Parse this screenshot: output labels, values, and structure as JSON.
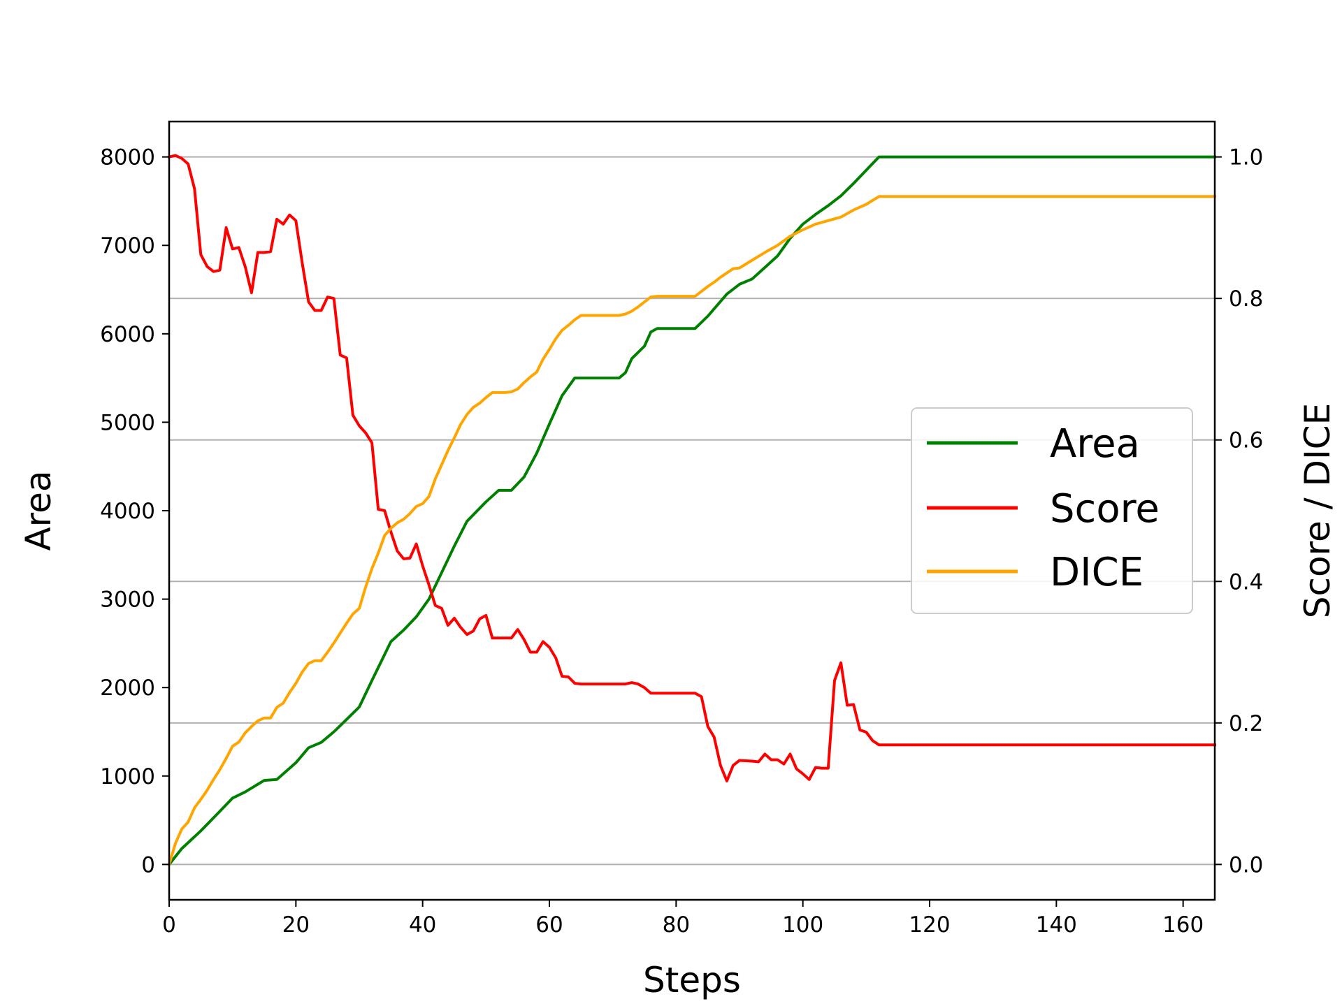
{
  "chart_data": {
    "type": "line",
    "xlabel": "Steps",
    "ylabel_left": "Area",
    "ylabel_right": "Score / DICE",
    "xlim": [
      0,
      165
    ],
    "ylim_left": [
      -400,
      8400
    ],
    "ylim_right": [
      -0.05,
      1.05
    ],
    "xticks": [
      0,
      20,
      40,
      60,
      80,
      100,
      120,
      140,
      160
    ],
    "yticks_left": [
      0,
      1000,
      2000,
      3000,
      4000,
      5000,
      6000,
      7000,
      8000
    ],
    "yticks_right": [
      "0.0",
      "0.2",
      "0.4",
      "0.6",
      "0.8",
      "1.0"
    ],
    "grid": "horizontal lines at right-axis ticks",
    "legend_position": "center-right",
    "colors": {
      "Area": "#008000",
      "Score": "#ff0000",
      "DICE": "#ffa500",
      "grid": "#b0b0b0"
    },
    "series": [
      {
        "name": "Area",
        "axis": "left",
        "points": [
          [
            0,
            0
          ],
          [
            2,
            180
          ],
          [
            5,
            380
          ],
          [
            8,
            600
          ],
          [
            10,
            750
          ],
          [
            12,
            820
          ],
          [
            15,
            950
          ],
          [
            17,
            960
          ],
          [
            20,
            1150
          ],
          [
            22,
            1320
          ],
          [
            24,
            1380
          ],
          [
            26,
            1500
          ],
          [
            28,
            1640
          ],
          [
            30,
            1780
          ],
          [
            32,
            2080
          ],
          [
            35,
            2520
          ],
          [
            37,
            2650
          ],
          [
            39,
            2800
          ],
          [
            41,
            3000
          ],
          [
            43,
            3300
          ],
          [
            45,
            3600
          ],
          [
            47,
            3880
          ],
          [
            50,
            4100
          ],
          [
            52,
            4230
          ],
          [
            54,
            4230
          ],
          [
            56,
            4380
          ],
          [
            58,
            4650
          ],
          [
            60,
            4980
          ],
          [
            62,
            5300
          ],
          [
            64,
            5500
          ],
          [
            66,
            5500
          ],
          [
            71,
            5500
          ],
          [
            72,
            5560
          ],
          [
            73,
            5720
          ],
          [
            75,
            5860
          ],
          [
            76,
            6020
          ],
          [
            77,
            6060
          ],
          [
            83,
            6060
          ],
          [
            85,
            6200
          ],
          [
            88,
            6450
          ],
          [
            90,
            6560
          ],
          [
            92,
            6620
          ],
          [
            94,
            6750
          ],
          [
            96,
            6880
          ],
          [
            98,
            7080
          ],
          [
            100,
            7240
          ],
          [
            102,
            7350
          ],
          [
            104,
            7450
          ],
          [
            106,
            7560
          ],
          [
            108,
            7700
          ],
          [
            110,
            7850
          ],
          [
            112,
            8000
          ],
          [
            165,
            8000
          ]
        ]
      },
      {
        "name": "Score",
        "axis": "right",
        "points": [
          [
            0,
            1.0
          ],
          [
            1,
            1.002
          ],
          [
            2,
            0.998
          ],
          [
            3,
            0.99
          ],
          [
            4,
            0.955
          ],
          [
            5,
            0.862
          ],
          [
            6,
            0.845
          ],
          [
            7,
            0.838
          ],
          [
            8,
            0.84
          ],
          [
            9,
            0.9
          ],
          [
            10,
            0.87
          ],
          [
            11,
            0.872
          ],
          [
            12,
            0.845
          ],
          [
            13,
            0.808
          ],
          [
            14,
            0.865
          ],
          [
            15,
            0.865
          ],
          [
            16,
            0.866
          ],
          [
            17,
            0.912
          ],
          [
            18,
            0.905
          ],
          [
            19,
            0.918
          ],
          [
            20,
            0.91
          ],
          [
            21,
            0.85
          ],
          [
            22,
            0.795
          ],
          [
            23,
            0.783
          ],
          [
            24,
            0.783
          ],
          [
            25,
            0.802
          ],
          [
            26,
            0.8
          ],
          [
            27,
            0.72
          ],
          [
            28,
            0.716
          ],
          [
            29,
            0.635
          ],
          [
            30,
            0.62
          ],
          [
            31,
            0.61
          ],
          [
            32,
            0.596
          ],
          [
            33,
            0.502
          ],
          [
            34,
            0.5
          ],
          [
            35,
            0.47
          ],
          [
            36,
            0.443
          ],
          [
            37,
            0.432
          ],
          [
            38,
            0.433
          ],
          [
            39,
            0.453
          ],
          [
            40,
            0.422
          ],
          [
            41,
            0.395
          ],
          [
            42,
            0.366
          ],
          [
            43,
            0.362
          ],
          [
            44,
            0.338
          ],
          [
            45,
            0.348
          ],
          [
            46,
            0.335
          ],
          [
            47,
            0.325
          ],
          [
            48,
            0.33
          ],
          [
            49,
            0.347
          ],
          [
            50,
            0.352
          ],
          [
            51,
            0.32
          ],
          [
            52,
            0.32
          ],
          [
            53,
            0.32
          ],
          [
            54,
            0.32
          ],
          [
            55,
            0.332
          ],
          [
            56,
            0.318
          ],
          [
            57,
            0.3
          ],
          [
            58,
            0.3
          ],
          [
            59,
            0.315
          ],
          [
            60,
            0.307
          ],
          [
            61,
            0.292
          ],
          [
            62,
            0.266
          ],
          [
            63,
            0.265
          ],
          [
            64,
            0.256
          ],
          [
            65,
            0.255
          ],
          [
            72,
            0.255
          ],
          [
            73,
            0.257
          ],
          [
            74,
            0.255
          ],
          [
            75,
            0.25
          ],
          [
            76,
            0.242
          ],
          [
            83,
            0.242
          ],
          [
            84,
            0.237
          ],
          [
            85,
            0.195
          ],
          [
            86,
            0.18
          ],
          [
            87,
            0.14
          ],
          [
            88,
            0.118
          ],
          [
            89,
            0.14
          ],
          [
            90,
            0.147
          ],
          [
            92,
            0.146
          ],
          [
            93,
            0.145
          ],
          [
            94,
            0.156
          ],
          [
            95,
            0.148
          ],
          [
            96,
            0.148
          ],
          [
            97,
            0.142
          ],
          [
            98,
            0.156
          ],
          [
            99,
            0.135
          ],
          [
            100,
            0.128
          ],
          [
            101,
            0.12
          ],
          [
            102,
            0.137
          ],
          [
            103,
            0.136
          ],
          [
            104,
            0.136
          ],
          [
            105,
            0.26
          ],
          [
            106,
            0.285
          ],
          [
            107,
            0.225
          ],
          [
            108,
            0.226
          ],
          [
            109,
            0.19
          ],
          [
            110,
            0.187
          ],
          [
            111,
            0.175
          ],
          [
            112,
            0.169
          ],
          [
            165,
            0.169
          ]
        ]
      },
      {
        "name": "DICE",
        "axis": "right",
        "points": [
          [
            0,
            0
          ],
          [
            1,
            0.03
          ],
          [
            2,
            0.05
          ],
          [
            3,
            0.06
          ],
          [
            4,
            0.08
          ],
          [
            5,
            0.092
          ],
          [
            6,
            0.105
          ],
          [
            7,
            0.12
          ],
          [
            8,
            0.134
          ],
          [
            9,
            0.15
          ],
          [
            10,
            0.167
          ],
          [
            11,
            0.173
          ],
          [
            12,
            0.186
          ],
          [
            13,
            0.195
          ],
          [
            14,
            0.203
          ],
          [
            15,
            0.207
          ],
          [
            16,
            0.207
          ],
          [
            17,
            0.222
          ],
          [
            18,
            0.228
          ],
          [
            19,
            0.243
          ],
          [
            20,
            0.256
          ],
          [
            21,
            0.272
          ],
          [
            22,
            0.284
          ],
          [
            23,
            0.288
          ],
          [
            24,
            0.288
          ],
          [
            25,
            0.3
          ],
          [
            26,
            0.313
          ],
          [
            27,
            0.327
          ],
          [
            28,
            0.341
          ],
          [
            29,
            0.354
          ],
          [
            30,
            0.362
          ],
          [
            31,
            0.392
          ],
          [
            32,
            0.418
          ],
          [
            33,
            0.44
          ],
          [
            34,
            0.465
          ],
          [
            35,
            0.475
          ],
          [
            36,
            0.483
          ],
          [
            37,
            0.488
          ],
          [
            38,
            0.496
          ],
          [
            39,
            0.506
          ],
          [
            40,
            0.51
          ],
          [
            41,
            0.52
          ],
          [
            42,
            0.545
          ],
          [
            43,
            0.565
          ],
          [
            44,
            0.585
          ],
          [
            45,
            0.603
          ],
          [
            46,
            0.622
          ],
          [
            47,
            0.636
          ],
          [
            48,
            0.646
          ],
          [
            49,
            0.652
          ],
          [
            50,
            0.66
          ],
          [
            51,
            0.667
          ],
          [
            52,
            0.667
          ],
          [
            53,
            0.667
          ],
          [
            54,
            0.668
          ],
          [
            55,
            0.672
          ],
          [
            56,
            0.681
          ],
          [
            57,
            0.689
          ],
          [
            58,
            0.696
          ],
          [
            59,
            0.714
          ],
          [
            60,
            0.728
          ],
          [
            61,
            0.743
          ],
          [
            62,
            0.755
          ],
          [
            63,
            0.762
          ],
          [
            64,
            0.77
          ],
          [
            65,
            0.776
          ],
          [
            71,
            0.776
          ],
          [
            72,
            0.778
          ],
          [
            73,
            0.782
          ],
          [
            74,
            0.788
          ],
          [
            75,
            0.795
          ],
          [
            76,
            0.802
          ],
          [
            77,
            0.803
          ],
          [
            83,
            0.803
          ],
          [
            84,
            0.81
          ],
          [
            85,
            0.817
          ],
          [
            86,
            0.823
          ],
          [
            87,
            0.83
          ],
          [
            88,
            0.836
          ],
          [
            89,
            0.842
          ],
          [
            90,
            0.843
          ],
          [
            92,
            0.854
          ],
          [
            94,
            0.865
          ],
          [
            96,
            0.875
          ],
          [
            98,
            0.888
          ],
          [
            100,
            0.897
          ],
          [
            102,
            0.905
          ],
          [
            104,
            0.91
          ],
          [
            106,
            0.915
          ],
          [
            108,
            0.925
          ],
          [
            110,
            0.933
          ],
          [
            112,
            0.944
          ],
          [
            165,
            0.944
          ]
        ]
      }
    ]
  }
}
